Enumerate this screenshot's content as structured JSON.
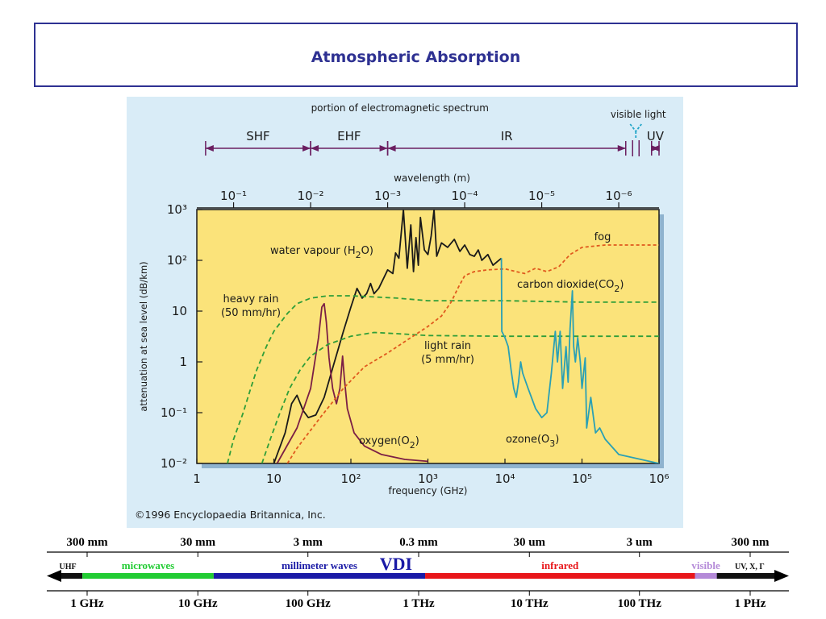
{
  "page": {
    "title": "Atmospheric Absorption"
  },
  "chart_data": {
    "type": "line",
    "title": "",
    "xlabel": "frequency (GHz)",
    "ylabel": "attenuation at sea level (dB/km)",
    "x_scale": "log",
    "y_scale": "log",
    "xlim": [
      1,
      1000000
    ],
    "ylim": [
      0.01,
      1000
    ],
    "x_ticks": [
      {
        "v": 1,
        "label": "1"
      },
      {
        "v": 10,
        "label": "10"
      },
      {
        "v": 100,
        "label": "10²"
      },
      {
        "v": 1000,
        "label": "10³"
      },
      {
        "v": 10000,
        "label": "10⁴"
      },
      {
        "v": 100000,
        "label": "10⁵"
      },
      {
        "v": 1000000,
        "label": "10⁶"
      }
    ],
    "y_ticks": [
      {
        "v": 0.01,
        "label": "10⁻²"
      },
      {
        "v": 0.1,
        "label": "10⁻¹"
      },
      {
        "v": 1,
        "label": "1"
      },
      {
        "v": 10,
        "label": "10"
      },
      {
        "v": 100,
        "label": "10²"
      },
      {
        "v": 1000,
        "label": "10³"
      }
    ],
    "top_axis_label": "wavelength (m)",
    "top_ticks": [
      {
        "v": 3,
        "label": "10⁻¹"
      },
      {
        "v": 30,
        "label": "10⁻²"
      },
      {
        "v": 300,
        "label": "10⁻³"
      },
      {
        "v": 3000,
        "label": "10⁻⁴"
      },
      {
        "v": 30000,
        "label": "10⁻⁵"
      },
      {
        "v": 300000,
        "label": "10⁻⁶"
      }
    ],
    "spectrum_title": "portion of electromagnetic spectrum",
    "spectrum_bands": [
      {
        "label": "SHF",
        "from": 1.3,
        "to": 30
      },
      {
        "label": "EHF",
        "from": 30,
        "to": 300
      },
      {
        "label": "IR",
        "from": 300,
        "to": 370000
      },
      {
        "label": "UV",
        "from": 800000,
        "to": 1000000
      }
    ],
    "visible_light_label": "visible light",
    "colors": {
      "plot_bg": "#fbe37a",
      "outer_bg": "#d9ecf7",
      "water": "#1a1a1a",
      "oxygen": "#7b1f45",
      "rain": "#2f9e39",
      "fog": "#e05a1e",
      "co2": "#2aa0b5",
      "axis_purple": "#6a1e60"
    },
    "series": [
      {
        "name": "water vapour (H₂O)",
        "label_sub": [
          "water vapour (H",
          "2",
          "O)"
        ],
        "color": "water",
        "dash": "",
        "points": [
          [
            10,
            0.01
          ],
          [
            14,
            0.04
          ],
          [
            17,
            0.15
          ],
          [
            20,
            0.22
          ],
          [
            24,
            0.11
          ],
          [
            28,
            0.08
          ],
          [
            35,
            0.09
          ],
          [
            45,
            0.2
          ],
          [
            60,
            0.9
          ],
          [
            80,
            4
          ],
          [
            100,
            12
          ],
          [
            120,
            28
          ],
          [
            140,
            18
          ],
          [
            160,
            22
          ],
          [
            180,
            35
          ],
          [
            200,
            22
          ],
          [
            230,
            28
          ],
          [
            300,
            65
          ],
          [
            350,
            55
          ],
          [
            380,
            140
          ],
          [
            420,
            110
          ],
          [
            480,
            1000
          ],
          [
            540,
            70
          ],
          [
            600,
            500
          ],
          [
            650,
            60
          ],
          [
            700,
            280
          ],
          [
            750,
            80
          ],
          [
            800,
            700
          ],
          [
            900,
            160
          ],
          [
            1000,
            130
          ],
          [
            1100,
            300
          ],
          [
            1200,
            1000
          ],
          [
            1300,
            120
          ],
          [
            1500,
            220
          ],
          [
            1800,
            180
          ],
          [
            2200,
            260
          ],
          [
            2600,
            150
          ],
          [
            3000,
            200
          ],
          [
            3500,
            130
          ],
          [
            4000,
            120
          ],
          [
            4500,
            160
          ],
          [
            5000,
            100
          ],
          [
            6000,
            130
          ],
          [
            7000,
            80
          ],
          [
            8000,
            95
          ],
          [
            9000,
            110
          ]
        ]
      },
      {
        "name": "oxygen (O₂)",
        "label_sub": [
          "oxygen(O",
          "2",
          ")"
        ],
        "color": "oxygen",
        "dash": "",
        "points": [
          [
            11,
            0.01
          ],
          [
            20,
            0.05
          ],
          [
            30,
            0.3
          ],
          [
            38,
            3
          ],
          [
            42,
            12
          ],
          [
            45,
            14
          ],
          [
            48,
            6
          ],
          [
            52,
            1.2
          ],
          [
            58,
            0.3
          ],
          [
            65,
            0.15
          ],
          [
            72,
            0.3
          ],
          [
            78,
            1.3
          ],
          [
            82,
            0.5
          ],
          [
            90,
            0.12
          ],
          [
            110,
            0.04
          ],
          [
            150,
            0.022
          ],
          [
            250,
            0.015
          ],
          [
            500,
            0.012
          ],
          [
            1000,
            0.011
          ]
        ]
      },
      {
        "name": "heavy rain (50 mm/hr)",
        "label_lines": [
          "heavy rain",
          "(50 mm/hr)"
        ],
        "color": "rain",
        "dash": "6,4",
        "points": [
          [
            2.5,
            0.01
          ],
          [
            3,
            0.03
          ],
          [
            4,
            0.1
          ],
          [
            5,
            0.3
          ],
          [
            6,
            0.7
          ],
          [
            8,
            2
          ],
          [
            10,
            4
          ],
          [
            15,
            9
          ],
          [
            20,
            14
          ],
          [
            30,
            18
          ],
          [
            50,
            20
          ],
          [
            100,
            20
          ],
          [
            200,
            19
          ],
          [
            400,
            18
          ],
          [
            1000,
            16
          ],
          [
            10000,
            16
          ],
          [
            100000,
            15
          ],
          [
            1000000,
            15
          ]
        ]
      },
      {
        "name": "light rain (5 mm/hr)",
        "label_lines": [
          "light rain",
          "(5 mm/hr)"
        ],
        "color": "rain",
        "dash": "6,4",
        "points": [
          [
            7,
            0.01
          ],
          [
            9,
            0.03
          ],
          [
            12,
            0.1
          ],
          [
            16,
            0.3
          ],
          [
            22,
            0.7
          ],
          [
            30,
            1.3
          ],
          [
            50,
            2.2
          ],
          [
            100,
            3.2
          ],
          [
            200,
            3.8
          ],
          [
            400,
            3.6
          ],
          [
            1000,
            3.3
          ],
          [
            10000,
            3.2
          ],
          [
            100000,
            3.2
          ],
          [
            1000000,
            3.2
          ]
        ]
      },
      {
        "name": "fog",
        "label_lines": [
          "fog"
        ],
        "color": "fog",
        "dash": "4,3",
        "points": [
          [
            15,
            0.01
          ],
          [
            20,
            0.02
          ],
          [
            40,
            0.08
          ],
          [
            80,
            0.3
          ],
          [
            150,
            0.8
          ],
          [
            300,
            1.5
          ],
          [
            600,
            3
          ],
          [
            1000,
            5
          ],
          [
            1500,
            8
          ],
          [
            2000,
            15
          ],
          [
            2500,
            30
          ],
          [
            3000,
            50
          ],
          [
            4000,
            60
          ],
          [
            6000,
            65
          ],
          [
            10000,
            68
          ],
          [
            14000,
            60
          ],
          [
            18000,
            55
          ],
          [
            25000,
            70
          ],
          [
            35000,
            60
          ],
          [
            50000,
            75
          ],
          [
            70000,
            130
          ],
          [
            100000,
            180
          ],
          [
            200000,
            200
          ],
          [
            1000000,
            200
          ]
        ]
      },
      {
        "name": "carbon dioxide (CO₂)",
        "label_sub": [
          "carbon dioxide(CO",
          "2",
          ")"
        ],
        "color": "co2",
        "dash": "",
        "points": [
          [
            9000,
            110
          ],
          [
            9100,
            4
          ],
          [
            10000,
            3
          ],
          [
            11000,
            2
          ],
          [
            12000,
            0.7
          ],
          [
            13000,
            0.3
          ],
          [
            14000,
            0.2
          ],
          [
            15000,
            0.4
          ],
          [
            16000,
            1
          ],
          [
            17000,
            0.6
          ],
          [
            20000,
            0.3
          ],
          [
            25000,
            0.12
          ],
          [
            30000,
            0.08
          ],
          [
            35000,
            0.1
          ],
          [
            40000,
            0.6
          ],
          [
            45000,
            4
          ],
          [
            48000,
            1
          ],
          [
            52000,
            4
          ],
          [
            56000,
            0.3
          ],
          [
            62000,
            2
          ],
          [
            66000,
            0.4
          ],
          [
            70000,
            4.5
          ],
          [
            75000,
            25
          ],
          [
            78000,
            2
          ],
          [
            82000,
            1
          ],
          [
            88000,
            3
          ],
          [
            95000,
            1
          ],
          [
            100000,
            0.3
          ],
          [
            110000,
            1.2
          ],
          [
            115000,
            0.05
          ],
          [
            130000,
            0.2
          ],
          [
            150000,
            0.04
          ],
          [
            170000,
            0.05
          ],
          [
            200000,
            0.03
          ],
          [
            300000,
            0.015
          ],
          [
            1000000,
            0.01
          ]
        ]
      }
    ],
    "ozone_label": [
      "ozone(O",
      "3",
      ")"
    ],
    "copyright": "©1996 Encyclopaedia Britannica, Inc."
  },
  "spectrum_bar": {
    "wavelength_labels": [
      {
        "pos": 0.0,
        "label": "300 mm"
      },
      {
        "pos": 0.167,
        "label": "30 mm"
      },
      {
        "pos": 0.333,
        "label": "3 mm"
      },
      {
        "pos": 0.5,
        "label": "0.3 mm"
      },
      {
        "pos": 0.667,
        "label": "30 um"
      },
      {
        "pos": 0.833,
        "label": "3 um"
      },
      {
        "pos": 1.0,
        "label": "300 nm"
      }
    ],
    "frequency_labels": [
      {
        "pos": 0.0,
        "label": "1 GHz"
      },
      {
        "pos": 0.167,
        "label": "10 GHz"
      },
      {
        "pos": 0.333,
        "label": "100 GHz"
      },
      {
        "pos": 0.5,
        "label": "1 THz"
      },
      {
        "pos": 0.667,
        "label": "10 THz"
      },
      {
        "pos": 0.833,
        "label": "100 THz"
      },
      {
        "pos": 1.0,
        "label": "1 PHz"
      }
    ],
    "segments": [
      {
        "label": "UHF",
        "from": 0.0,
        "to": 0.04,
        "color": "#111111",
        "text_color": "#111111"
      },
      {
        "label": "microwaves",
        "from": 0.04,
        "to": 0.22,
        "color": "#22cc33",
        "text_color": "#22cc33"
      },
      {
        "label": "millimeter waves",
        "from": 0.22,
        "to": 0.51,
        "color": "#1a1aa6",
        "text_color": "#1a1aa6"
      },
      {
        "label": "infrared",
        "from": 0.51,
        "to": 0.88,
        "color": "#e8161a",
        "text_color": "#e8161a"
      },
      {
        "label": "visible",
        "from": 0.88,
        "to": 0.91,
        "color": "#b48ad8",
        "text_color": "#b48ad8"
      },
      {
        "label": "UV, X, Γ",
        "from": 0.91,
        "to": 1.0,
        "color": "#111111",
        "text_color": "#111111"
      }
    ],
    "brand_label": "VDI"
  }
}
